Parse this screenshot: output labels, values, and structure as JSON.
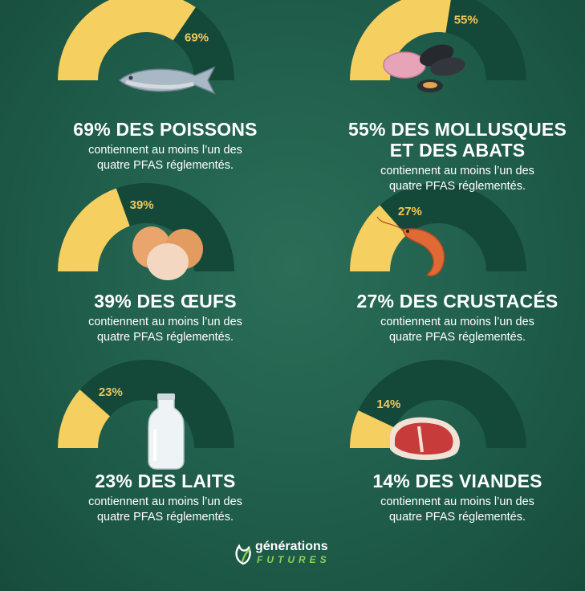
{
  "chart_data": {
    "type": "gauge",
    "max": 100,
    "items": [
      {
        "name": "poissons",
        "value": 69,
        "label": "69%",
        "headline": [
          "69% DES POISSONS"
        ],
        "icon": "fish-icon"
      },
      {
        "name": "mollusques",
        "value": 55,
        "label": "55%",
        "headline": [
          "55% DES MOLLUSQUES",
          "ET DES ABATS"
        ],
        "icon": "mussels-offal-icon"
      },
      {
        "name": "oeufs",
        "value": 39,
        "label": "39%",
        "headline": [
          "39% DES ŒUFS"
        ],
        "icon": "eggs-icon"
      },
      {
        "name": "crustaces",
        "value": 27,
        "label": "27%",
        "headline": [
          "27% DES CRUSTACÉS"
        ],
        "icon": "shrimp-icon"
      },
      {
        "name": "laits",
        "value": 23,
        "label": "23%",
        "headline": [
          "23% DES LAITS"
        ],
        "icon": "milk-bottle-icon"
      },
      {
        "name": "viandes",
        "value": 14,
        "label": "14%",
        "headline": [
          "14% DES VIANDES"
        ],
        "icon": "meat-steak-icon"
      }
    ]
  },
  "sub_lines": [
    "contiennent au moins l’un des",
    "quatre PFAS réglementés."
  ],
  "logo": {
    "name": "générations",
    "tagline": "FUTURES"
  },
  "colors": {
    "fill": "#f6cf61",
    "track": "#14493a",
    "text": "#ffffff",
    "pct": "#f2c75c",
    "accent": "#8fd14f"
  }
}
